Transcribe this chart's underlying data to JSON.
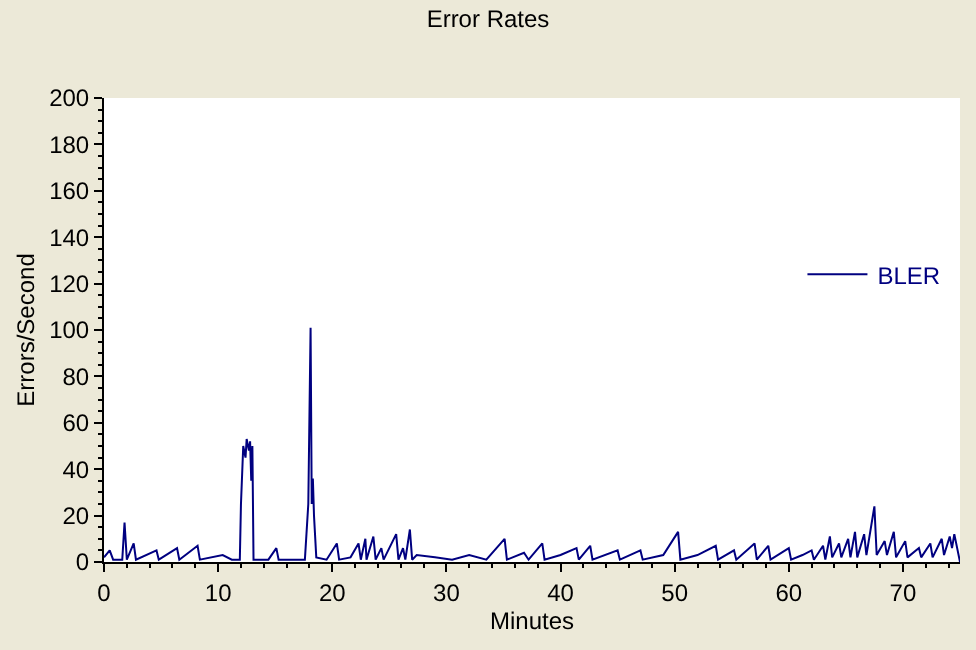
{
  "chart_data": {
    "type": "line",
    "title": "Error Rates",
    "xlabel": "Minutes",
    "ylabel": "Errors/Second",
    "xlim": [
      0,
      75
    ],
    "xticks": [
      0,
      10,
      20,
      30,
      40,
      50,
      60,
      70
    ],
    "ylim": [
      0,
      200
    ],
    "yticks": [
      0,
      20,
      40,
      60,
      80,
      100,
      120,
      140,
      160,
      180,
      200
    ],
    "legend": "right",
    "marker": "none",
    "line_style": "solid",
    "x": [
      0,
      0.5,
      0.8,
      1.6,
      1.8,
      2.0,
      2.6,
      2.8,
      4.6,
      4.8,
      6.4,
      6.6,
      8.2,
      8.4,
      10.4,
      11.2,
      11.9,
      12.0,
      12.2,
      12.4,
      12.5,
      12.7,
      12.8,
      12.9,
      13.0,
      13.1,
      14.4,
      15.1,
      15.3,
      17.6,
      17.9,
      18.1,
      18.2,
      18.3,
      18.4,
      18.6,
      19.5,
      20.4,
      20.6,
      21.6,
      22.3,
      22.5,
      22.9,
      23.0,
      23.6,
      23.8,
      24.3,
      24.5,
      25.6,
      25.8,
      26.2,
      26.4,
      26.8,
      27.0,
      27.4,
      29.0,
      30.5,
      32.0,
      33.5,
      35.1,
      35.3,
      36.8,
      37.2,
      38.4,
      38.6,
      40.0,
      41.4,
      41.6,
      42.6,
      42.8,
      45.0,
      45.2,
      47.0,
      47.2,
      49.0,
      50.3,
      50.5,
      52.0,
      53.6,
      53.8,
      55.2,
      55.4,
      57.0,
      57.2,
      58.2,
      58.4,
      60.0,
      60.2,
      61.2,
      62.0,
      62.2,
      63.0,
      63.2,
      63.6,
      63.8,
      64.4,
      64.6,
      65.2,
      65.4,
      65.8,
      66.0,
      66.6,
      66.8,
      67.5,
      67.7,
      68.4,
      68.6,
      69.2,
      69.4,
      70.2,
      70.4,
      71.4,
      71.6,
      72.4,
      72.6,
      73.4,
      73.6,
      74.1,
      74.3,
      74.5,
      75
    ],
    "series": [
      {
        "name": "BLER",
        "color": "#000080",
        "values": [
          2,
          5,
          1,
          1,
          17,
          1,
          8,
          1,
          5,
          1,
          6,
          1,
          7,
          1,
          3,
          1,
          1,
          25,
          50,
          45,
          53,
          48,
          52,
          35,
          50,
          1,
          1,
          6,
          1,
          1,
          25,
          101,
          25,
          36,
          20,
          2,
          1,
          8,
          1,
          2,
          8,
          1,
          10,
          1,
          11,
          1,
          6,
          1,
          12,
          1,
          6,
          1,
          14,
          1,
          3,
          2,
          1,
          3,
          1,
          10,
          1,
          4,
          1,
          8,
          1,
          3,
          6,
          1,
          7,
          1,
          5,
          1,
          5,
          1,
          3,
          13,
          1,
          3,
          7,
          1,
          5,
          1,
          8,
          1,
          7,
          1,
          6,
          1,
          3,
          5,
          1,
          7,
          1,
          11,
          2,
          8,
          2,
          10,
          2,
          13,
          2,
          12,
          3,
          24,
          3,
          9,
          3,
          13,
          2,
          9,
          2,
          6,
          2,
          8,
          2,
          10,
          3,
          11,
          6,
          12,
          0
        ]
      }
    ]
  }
}
